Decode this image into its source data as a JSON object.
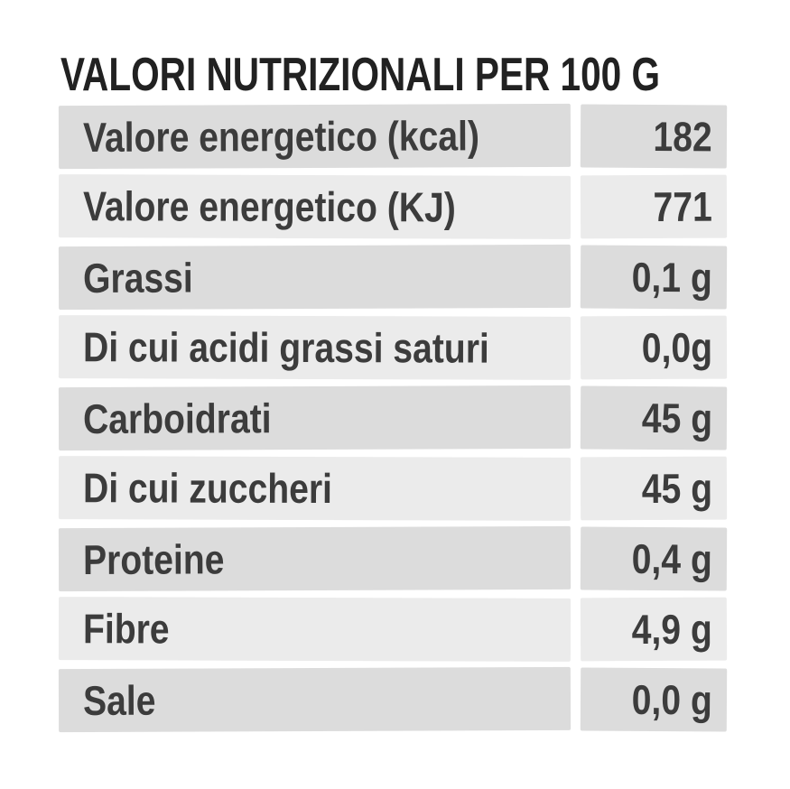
{
  "title": "VALORI NUTRIZIONALI PER 100 G",
  "table": {
    "rows": [
      {
        "label": "Valore energetico (kcal)",
        "value": "182"
      },
      {
        "label": "Valore energetico (KJ)",
        "value": "771"
      },
      {
        "label": "Grassi",
        "value": "0,1 g"
      },
      {
        "label": "Di cui acidi grassi saturi",
        "value": "0,0g"
      },
      {
        "label": "Carboidrati",
        "value": "45 g"
      },
      {
        "label": "Di cui zuccheri",
        "value": "45 g"
      },
      {
        "label": "Proteine",
        "value": "0,4 g"
      },
      {
        "label": "Fibre",
        "value": "4,9 g"
      },
      {
        "label": "Sale",
        "value": "0,0 g"
      }
    ]
  },
  "colors": {
    "background": "#ffffff",
    "row_dark": "#dcdcdc",
    "row_light": "#ebebeb",
    "title_text": "#212121",
    "row_text": "#3c3c3c"
  }
}
